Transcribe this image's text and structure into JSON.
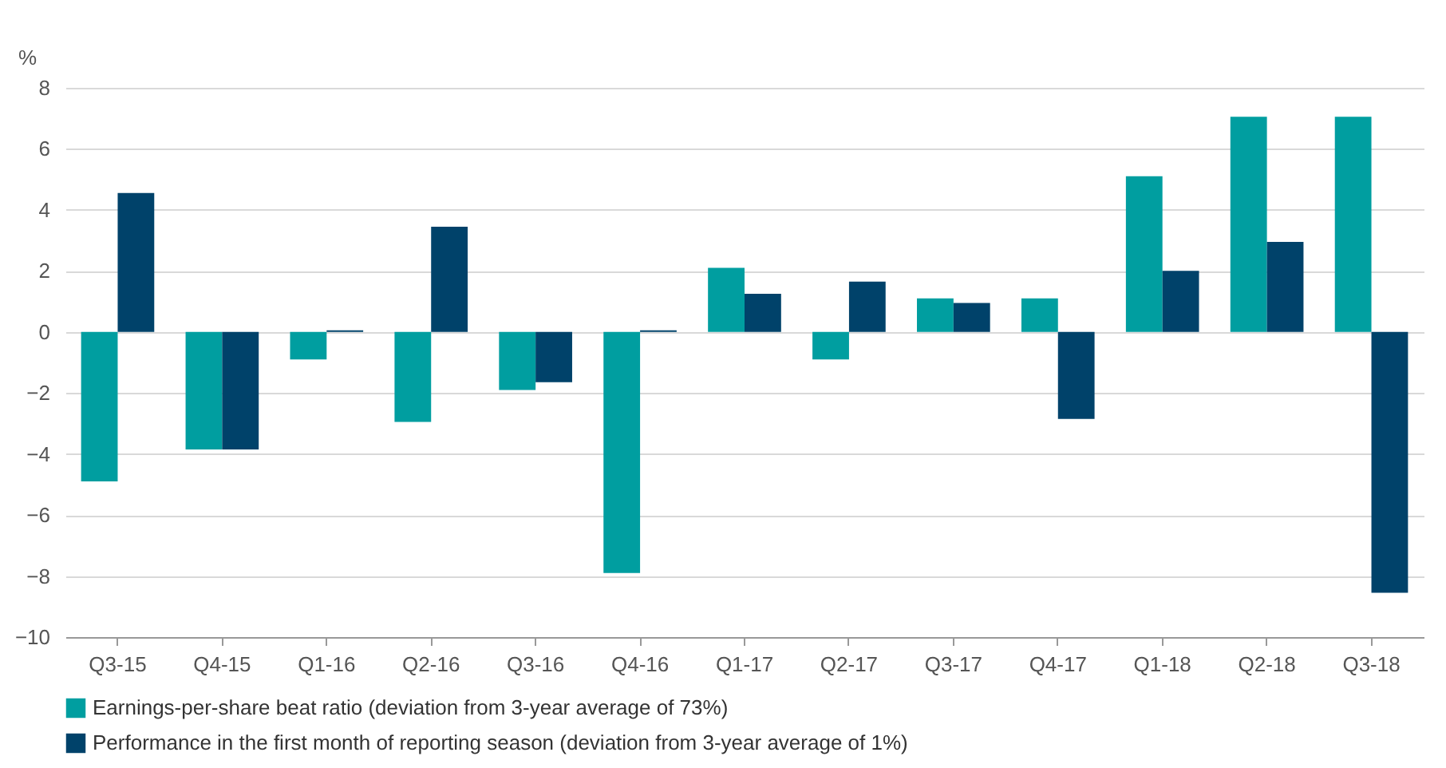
{
  "chart_data": {
    "type": "bar",
    "ylabel": "%",
    "categories": [
      "Q3-15",
      "Q4-15",
      "Q1-16",
      "Q2-16",
      "Q3-16",
      "Q4-16",
      "Q1-17",
      "Q2-17",
      "Q3-17",
      "Q4-17",
      "Q1-18",
      "Q2-18",
      "Q3-18"
    ],
    "series": [
      {
        "name": "Earnings-per-share beat ratio (deviation from 3-year average of 73%)",
        "color": "#009ea0",
        "values": [
          -4.9,
          -3.85,
          -0.9,
          -2.95,
          -1.9,
          -7.9,
          2.1,
          -0.9,
          1.1,
          1.1,
          5.1,
          7.05,
          7.05
        ]
      },
      {
        "name": "Performance in the first month of reporting season (deviation from 3-year average of 1%)",
        "color": "#00426a",
        "values": [
          4.55,
          -3.85,
          0.05,
          3.45,
          -1.65,
          0.05,
          1.25,
          1.65,
          0.95,
          -2.85,
          2.0,
          2.95,
          -8.55
        ]
      }
    ],
    "ylim": [
      -10,
      8
    ],
    "yticks": [
      -10,
      -8,
      -6,
      -4,
      -2,
      0,
      2,
      4,
      6,
      8
    ],
    "grid": "y",
    "legend": "bottom left"
  }
}
